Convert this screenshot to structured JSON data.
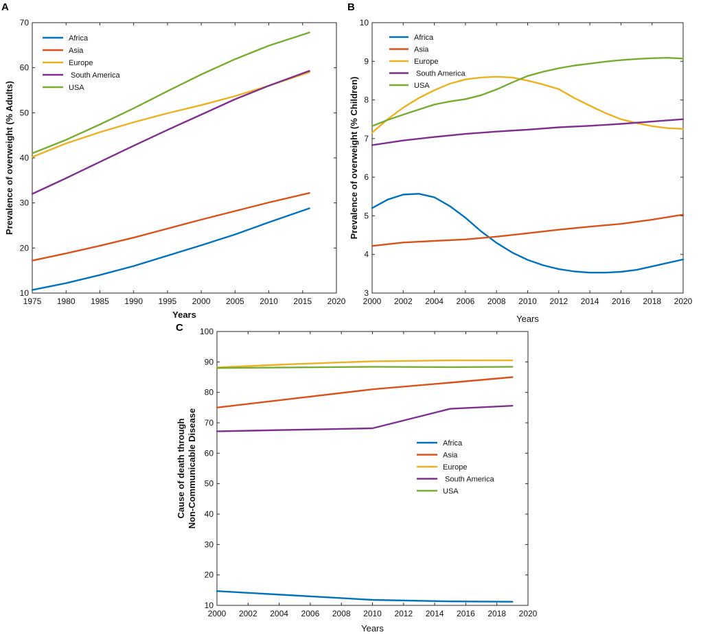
{
  "chart_data": [
    {
      "id": "A",
      "panel_label": "A",
      "type": "line",
      "xlabel": "Years",
      "ylabel": "Prevalence of overweight (% Adults)",
      "xlim": [
        1975,
        2020
      ],
      "ylim": [
        10,
        70
      ],
      "xticks": [
        1975,
        1980,
        1985,
        1990,
        1995,
        2000,
        2005,
        2010,
        2015,
        2020
      ],
      "yticks": [
        10,
        20,
        30,
        40,
        50,
        60,
        70
      ],
      "xtick_labels": [
        "1975",
        "1980",
        "1985",
        "1990",
        "1995",
        "2000",
        "2005",
        "2010",
        "2015",
        "2020"
      ],
      "ytick_labels": [
        "10",
        "20",
        "30",
        "40",
        "50",
        "60",
        "70"
      ],
      "legend_position": "top-left",
      "series": [
        {
          "name": "Africa",
          "color": "#0072BD",
          "x": [
            1975,
            1980,
            1985,
            1990,
            1995,
            2000,
            2005,
            2010,
            2016
          ],
          "values": [
            10.7,
            12.2,
            14.0,
            16.0,
            18.3,
            20.6,
            23.0,
            25.7,
            28.8
          ]
        },
        {
          "name": "Asia",
          "color": "#D95319",
          "x": [
            1975,
            1980,
            1985,
            1990,
            1995,
            2000,
            2005,
            2010,
            2016
          ],
          "values": [
            17.2,
            18.8,
            20.5,
            22.3,
            24.3,
            26.3,
            28.2,
            30.1,
            32.2
          ]
        },
        {
          "name": "Europe",
          "color": "#EDB120",
          "x": [
            1975,
            1980,
            1985,
            1990,
            1995,
            2000,
            2005,
            2010,
            2016
          ],
          "values": [
            40.2,
            43.2,
            45.7,
            47.9,
            49.9,
            51.7,
            53.7,
            56.0,
            59.0
          ]
        },
        {
          "name": " South America",
          "color": "#7E2F8E",
          "x": [
            1975,
            1980,
            1985,
            1990,
            1995,
            2000,
            2005,
            2010,
            2016
          ],
          "values": [
            32.0,
            35.5,
            39.1,
            42.7,
            46.2,
            49.6,
            53.0,
            56.0,
            59.3
          ]
        },
        {
          "name": "USA",
          "color": "#77AC30",
          "x": [
            1975,
            1980,
            1985,
            1990,
            1995,
            2000,
            2005,
            2010,
            2016
          ],
          "values": [
            41.0,
            44.0,
            47.4,
            51.0,
            54.8,
            58.5,
            61.9,
            64.9,
            67.8
          ]
        }
      ]
    },
    {
      "id": "B",
      "panel_label": "B",
      "type": "line",
      "xlabel": "Years",
      "ylabel": "Prevalence of overweight (% Children)",
      "xlim": [
        2000,
        2020
      ],
      "ylim": [
        3,
        10
      ],
      "xticks": [
        2000,
        2002,
        2004,
        2006,
        2008,
        2010,
        2012,
        2014,
        2016,
        2018,
        2020
      ],
      "yticks": [
        3,
        4,
        5,
        6,
        7,
        8,
        9,
        10
      ],
      "xtick_labels": [
        "2000",
        "2002",
        "2004",
        "2006",
        "2008",
        "2010",
        "2012",
        "2014",
        "2016",
        "2018",
        "2020"
      ],
      "ytick_labels": [
        "3",
        "4",
        "5",
        "6",
        "7",
        "8",
        "9",
        "10"
      ],
      "legend_position": "top-left",
      "series": [
        {
          "name": "Africa",
          "color": "#0072BD",
          "x": [
            2000,
            2001,
            2002,
            2003,
            2004,
            2005,
            2006,
            2007,
            2008,
            2009,
            2010,
            2011,
            2012,
            2013,
            2014,
            2015,
            2016,
            2017,
            2018,
            2019,
            2020
          ],
          "values": [
            5.2,
            5.42,
            5.55,
            5.57,
            5.48,
            5.25,
            4.95,
            4.6,
            4.3,
            4.05,
            3.86,
            3.72,
            3.62,
            3.56,
            3.53,
            3.53,
            3.55,
            3.6,
            3.69,
            3.78,
            3.87
          ]
        },
        {
          "name": "Asia",
          "color": "#D95319",
          "x": [
            2000,
            2002,
            2004,
            2006,
            2008,
            2010,
            2012,
            2014,
            2016,
            2018,
            2020
          ],
          "values": [
            4.22,
            4.31,
            4.35,
            4.39,
            4.46,
            4.55,
            4.64,
            4.72,
            4.79,
            4.9,
            5.03
          ]
        },
        {
          "name": "Europe",
          "color": "#EDB120",
          "x": [
            2000,
            2001,
            2002,
            2003,
            2004,
            2005,
            2006,
            2007,
            2008,
            2009,
            2010,
            2011,
            2012,
            2013,
            2014,
            2015,
            2016,
            2017,
            2018,
            2019,
            2020
          ],
          "values": [
            7.15,
            7.5,
            7.8,
            8.05,
            8.25,
            8.42,
            8.53,
            8.58,
            8.6,
            8.58,
            8.5,
            8.4,
            8.28,
            8.05,
            7.85,
            7.66,
            7.5,
            7.4,
            7.32,
            7.27,
            7.25
          ]
        },
        {
          "name": " South America",
          "color": "#7E2F8E",
          "x": [
            2000,
            2002,
            2004,
            2006,
            2008,
            2010,
            2012,
            2014,
            2016,
            2018,
            2020
          ],
          "values": [
            6.83,
            6.95,
            7.04,
            7.12,
            7.18,
            7.23,
            7.29,
            7.33,
            7.38,
            7.44,
            7.5
          ]
        },
        {
          "name": "USA",
          "color": "#77AC30",
          "x": [
            2000,
            2001,
            2002,
            2003,
            2004,
            2005,
            2006,
            2007,
            2008,
            2009,
            2010,
            2011,
            2012,
            2013,
            2014,
            2015,
            2016,
            2017,
            2018,
            2019,
            2020
          ],
          "values": [
            7.32,
            7.48,
            7.62,
            7.75,
            7.88,
            7.96,
            8.02,
            8.12,
            8.27,
            8.45,
            8.62,
            8.73,
            8.82,
            8.89,
            8.94,
            8.99,
            9.03,
            9.06,
            9.08,
            9.09,
            9.07
          ]
        }
      ]
    },
    {
      "id": "C",
      "panel_label": "C",
      "type": "line",
      "xlabel": "Years",
      "ylabel": "Cause of death through",
      "ylabel2": "Non-Communicable Disease",
      "xlim": [
        2000,
        2020
      ],
      "ylim": [
        10,
        100
      ],
      "xticks": [
        2000,
        2002,
        2004,
        2006,
        2008,
        2010,
        2012,
        2014,
        2016,
        2018,
        2020
      ],
      "yticks": [
        10,
        20,
        30,
        40,
        50,
        60,
        70,
        80,
        90,
        100
      ],
      "xtick_labels": [
        "2000",
        "2002",
        "2004",
        "2006",
        "2008",
        "2010",
        "2012",
        "2014",
        "2016",
        "2018",
        "2020"
      ],
      "ytick_labels": [
        "10",
        "20",
        "30",
        "40",
        "50",
        "60",
        "70",
        "80",
        "90",
        "100"
      ],
      "legend_position": "center-right",
      "series": [
        {
          "name": "Africa",
          "color": "#0072BD",
          "x": [
            2000,
            2010,
            2015,
            2019
          ],
          "values": [
            14.7,
            11.8,
            11.3,
            11.2
          ]
        },
        {
          "name": "Asia",
          "color": "#D95319",
          "x": [
            2000,
            2010,
            2015,
            2019
          ],
          "values": [
            75.0,
            81.0,
            83.2,
            85.0
          ]
        },
        {
          "name": "Europe",
          "color": "#EDB120",
          "x": [
            2000,
            2005,
            2010,
            2015,
            2019
          ],
          "values": [
            88.2,
            89.3,
            90.2,
            90.5,
            90.5
          ]
        },
        {
          "name": " South America",
          "color": "#7E2F8E",
          "x": [
            2000,
            2010,
            2015,
            2019
          ],
          "values": [
            67.2,
            68.2,
            74.6,
            75.6
          ]
        },
        {
          "name": "USA",
          "color": "#77AC30",
          "x": [
            2000,
            2010,
            2015,
            2019
          ],
          "values": [
            88.0,
            88.4,
            88.3,
            88.4
          ]
        }
      ]
    }
  ]
}
